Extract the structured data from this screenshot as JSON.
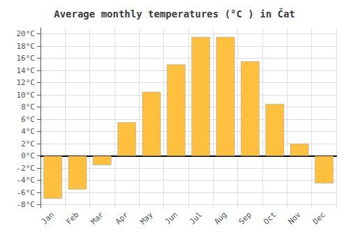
{
  "chart_data": {
    "type": "bar",
    "title": "Average monthly temperatures (°C ) in Čat",
    "categories": [
      "Jan",
      "Feb",
      "Mar",
      "Apr",
      "May",
      "Jun",
      "Jul",
      "Aug",
      "Sep",
      "Oct",
      "Nov",
      "Dec"
    ],
    "values": [
      -7,
      -5.5,
      -1.5,
      5.5,
      10.5,
      15,
      19.5,
      19.5,
      15.5,
      8.5,
      2,
      -4.5
    ],
    "color": "#FFC040",
    "ylim": [
      -8.5,
      21
    ],
    "yticks": [
      {
        "value": -8,
        "label": "-8°C"
      },
      {
        "value": -6,
        "label": "-6°C"
      },
      {
        "value": -4,
        "label": "-4°C"
      },
      {
        "value": -2,
        "label": "-2°C"
      },
      {
        "value": 0,
        "label": "0°C"
      },
      {
        "value": 2,
        "label": "2°C"
      },
      {
        "value": 4,
        "label": "4°C"
      },
      {
        "value": 6,
        "label": "6°C"
      },
      {
        "value": 8,
        "label": "8°C"
      },
      {
        "value": 10,
        "label": "10°C"
      },
      {
        "value": 12,
        "label": "12°C"
      },
      {
        "value": 14,
        "label": "14°C"
      },
      {
        "value": 16,
        "label": "16°C"
      },
      {
        "value": 18,
        "label": "18°C"
      },
      {
        "value": 20,
        "label": "20°C"
      }
    ],
    "grid": true
  }
}
